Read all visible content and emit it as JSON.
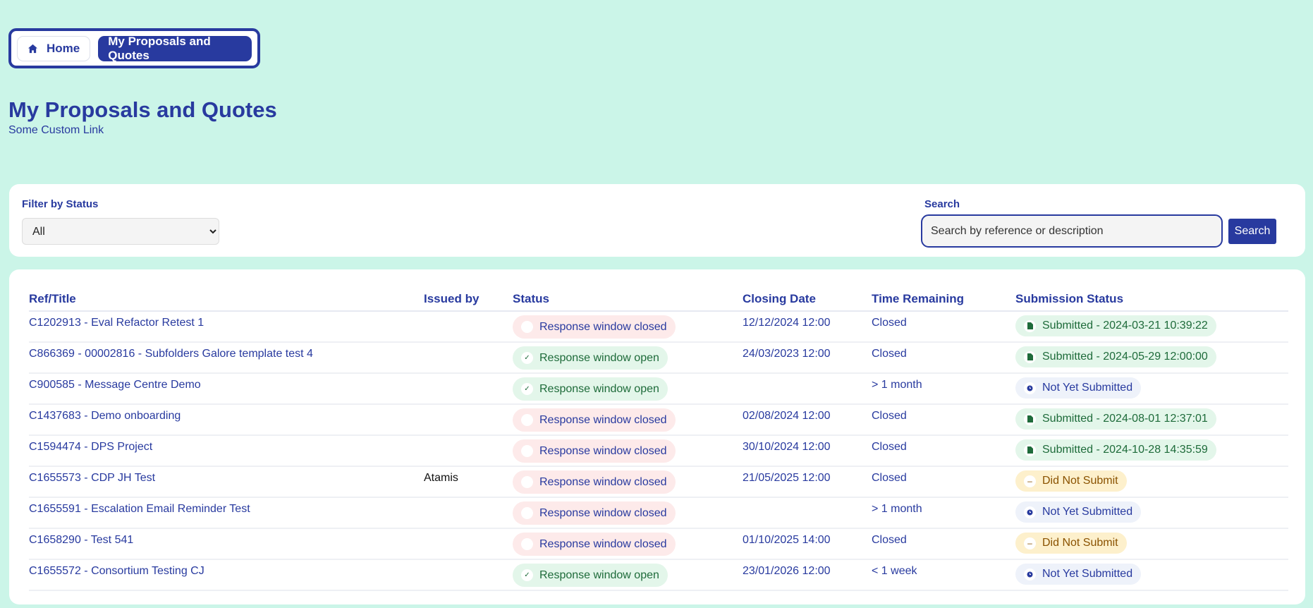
{
  "breadcrumb": {
    "home": "Home",
    "current": "My Proposals and Quotes"
  },
  "page": {
    "title": "My Proposals and Quotes",
    "custom_link": "Some Custom Link"
  },
  "filter": {
    "label": "Filter by Status",
    "selected": "All"
  },
  "search": {
    "label": "Search",
    "placeholder": "Search by reference or description",
    "button": "Search"
  },
  "colors": {
    "accent": "#283a9f",
    "background": "#cbf5e8",
    "closed_bg": "#fdeaea",
    "open_bg": "#e3f6ea",
    "did_not_bg": "#fdf0cc"
  },
  "table": {
    "headers": [
      "Ref/Title",
      "Issued by",
      "Status",
      "Closing Date",
      "Time Remaining",
      "Submission Status"
    ],
    "rows": [
      {
        "ref": "C1202913 - Eval Refactor Retest 1",
        "issuer": "",
        "status": "Response window closed",
        "state": "closed",
        "closing": "12/12/2024 12:00",
        "remaining": "Closed",
        "submission": "Submitted - 2024-03-21 10:39:22",
        "sub_state": "submitted"
      },
      {
        "ref": "C866369 - 00002816 - Subfolders Galore template test 4",
        "issuer": "",
        "status": "Response window open",
        "state": "open",
        "closing": "24/03/2023 12:00",
        "remaining": "Closed",
        "submission": "Submitted - 2024-05-29 12:00:00",
        "sub_state": "submitted"
      },
      {
        "ref": "C900585 - Message Centre Demo",
        "issuer": "",
        "status": "Response window open",
        "state": "open",
        "closing": "",
        "remaining": "> 1 month",
        "submission": "Not Yet Submitted",
        "sub_state": "notyet"
      },
      {
        "ref": "C1437683 - Demo onboarding",
        "issuer": "",
        "status": "Response window closed",
        "state": "closed",
        "closing": "02/08/2024 12:00",
        "remaining": "Closed",
        "submission": "Submitted - 2024-08-01 12:37:01",
        "sub_state": "submitted"
      },
      {
        "ref": "C1594474 - DPS Project",
        "issuer": "",
        "status": "Response window closed",
        "state": "closed",
        "closing": "30/10/2024 12:00",
        "remaining": "Closed",
        "submission": "Submitted - 2024-10-28 14:35:59",
        "sub_state": "submitted"
      },
      {
        "ref": "C1655573 - CDP JH Test",
        "issuer": "Atamis",
        "status": "Response window closed",
        "state": "closed",
        "closing": "21/05/2025 12:00",
        "remaining": "Closed",
        "submission": "Did Not Submit",
        "sub_state": "didnot"
      },
      {
        "ref": "C1655591 - Escalation Email Reminder Test",
        "issuer": "",
        "status": "Response window closed",
        "state": "closed",
        "closing": "",
        "remaining": "> 1 month",
        "submission": "Not Yet Submitted",
        "sub_state": "notyet"
      },
      {
        "ref": "C1658290 - Test 541",
        "issuer": "",
        "status": "Response window closed",
        "state": "closed",
        "closing": "01/10/2025 14:00",
        "remaining": "Closed",
        "submission": "Did Not Submit",
        "sub_state": "didnot"
      },
      {
        "ref": "C1655572 - Consortium Testing CJ",
        "issuer": "",
        "status": "Response window open",
        "state": "open",
        "closing": "23/01/2026 12:00",
        "remaining": "< 1 week",
        "submission": "Not Yet Submitted",
        "sub_state": "notyet"
      }
    ]
  }
}
